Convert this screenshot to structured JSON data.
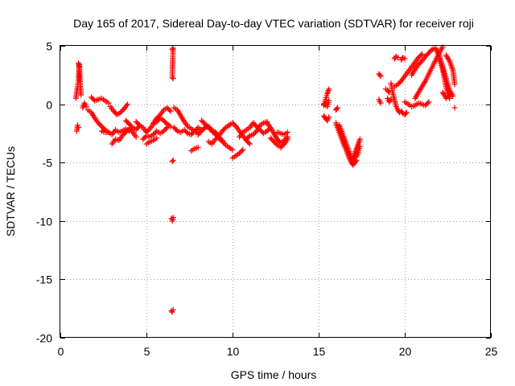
{
  "chart_data": {
    "type": "scatter",
    "title": "Day 165 of 2017, Sidereal Day-to-day VTEC variation (SDTVAR) for receiver roji",
    "xlabel": "GPS time / hours",
    "ylabel": "SDTVAR / TECUs",
    "xlim": [
      0,
      25
    ],
    "ylim": [
      -20,
      5
    ],
    "xticks": [
      0,
      5,
      10,
      15,
      20,
      25
    ],
    "yticks": [
      5,
      0,
      -5,
      -10,
      -15,
      -20
    ],
    "xtick_labels": [
      "0",
      "5",
      "10",
      "15",
      "20",
      "25"
    ],
    "ytick_labels": [
      "5",
      "0",
      "-5",
      "-10",
      "-15",
      "-20"
    ],
    "grid": true,
    "marker": "+",
    "color": "#ff0000",
    "series": [
      {
        "name": "SDTVAR",
        "segments": [
          {
            "x": [
              0.9,
              1.0,
              1.05,
              1.1,
              1.15,
              1.2
            ],
            "y": [
              0.5,
              1.5,
              2.0,
              3.4,
              1.8,
              0.8
            ]
          },
          {
            "x": [
              1.05,
              1.1
            ],
            "y": [
              3.5,
              3.2
            ]
          },
          {
            "x": [
              0.95,
              1.0,
              1.05
            ],
            "y": [
              -2.3,
              -1.8,
              -2.0
            ]
          },
          {
            "x": [
              1.3,
              1.4,
              1.5
            ],
            "y": [
              -0.3,
              0.1,
              -0.2
            ]
          },
          {
            "x": [
              1.6,
              1.8,
              2.0,
              2.2,
              2.4,
              2.6,
              2.8
            ],
            "y": [
              -0.5,
              -0.7,
              -1.2,
              -1.6,
              -1.9,
              -2.2,
              -2.4
            ]
          },
          {
            "x": [
              1.8,
              2.0,
              2.2,
              2.4,
              2.6,
              2.8
            ],
            "y": [
              0.6,
              0.3,
              0.4,
              0.5,
              0.3,
              0.1
            ]
          },
          {
            "x": [
              2.4,
              2.6,
              2.8,
              3.0,
              3.2,
              3.4,
              3.6,
              3.8,
              4.0
            ],
            "y": [
              -2.3,
              -2.4,
              -2.4,
              -2.6,
              -2.2,
              -2.4,
              -2.3,
              -2.1,
              -2.3
            ]
          },
          {
            "x": [
              2.9,
              3.1,
              3.3,
              3.5,
              3.7,
              3.9
            ],
            "y": [
              -0.2,
              -0.6,
              -0.9,
              -0.7,
              -0.4,
              0.0
            ]
          },
          {
            "x": [
              3.0,
              3.2,
              3.4,
              3.6,
              3.8,
              4.0,
              4.2,
              4.4
            ],
            "y": [
              -3.4,
              -3.0,
              -3.1,
              -2.7,
              -2.4,
              -2.1,
              -2.4,
              -2.8
            ]
          },
          {
            "x": [
              3.8,
              4.0,
              4.2,
              4.4,
              4.6
            ],
            "y": [
              -1.4,
              -1.7,
              -2.0,
              -2.2,
              -1.8
            ]
          },
          {
            "x": [
              4.4,
              4.6,
              4.8,
              5.0,
              5.2,
              5.4,
              5.6,
              5.8,
              6.0,
              6.2,
              6.4
            ],
            "y": [
              -1.5,
              -1.8,
              -2.0,
              -2.4,
              -2.1,
              -1.7,
              -1.5,
              -1.2,
              -1.4,
              -1.7,
              -1.9
            ]
          },
          {
            "x": [
              4.8,
              5.0,
              5.2,
              5.4,
              5.6,
              5.8,
              6.0,
              6.2
            ],
            "y": [
              -3.0,
              -2.7,
              -2.8,
              -2.6,
              -2.3,
              -2.5,
              -2.3,
              -2.0
            ]
          },
          {
            "x": [
              5.4,
              5.6,
              5.8,
              6.0,
              6.2,
              6.4
            ],
            "y": [
              -1.6,
              -1.2,
              -0.9,
              -0.5,
              -0.3,
              -0.6
            ]
          },
          {
            "x": [
              5.0,
              5.2,
              5.4,
              5.6
            ],
            "y": [
              -3.4,
              -3.2,
              -3.1,
              -2.9
            ]
          },
          {
            "x": [
              6.5,
              6.55,
              6.5,
              6.55
            ],
            "y": [
              4.7,
              4.8,
              2.3,
              2.2
            ]
          },
          {
            "x": [
              6.5,
              6.55
            ],
            "y": [
              -4.9,
              -4.8
            ]
          },
          {
            "x": [
              6.45,
              6.5,
              6.55
            ],
            "y": [
              -9.8,
              -10.0,
              -9.7
            ]
          },
          {
            "x": [
              6.45,
              6.5,
              6.55
            ],
            "y": [
              -17.7,
              -17.8,
              -17.6
            ]
          },
          {
            "x": [
              6.6,
              6.8,
              7.0,
              7.2,
              7.4,
              7.6,
              7.8,
              8.0,
              8.2
            ],
            "y": [
              -0.3,
              -0.5,
              -1.0,
              -1.5,
              -1.9,
              -2.1,
              -2.3,
              -2.0,
              -2.2
            ]
          },
          {
            "x": [
              6.6,
              6.8,
              7.0,
              7.2,
              7.4,
              7.6,
              7.8,
              8.0
            ],
            "y": [
              -2.0,
              -2.3,
              -2.4,
              -2.2,
              -2.5,
              -2.6,
              -2.3,
              -2.5
            ]
          },
          {
            "x": [
              7.6,
              7.8,
              8.0
            ],
            "y": [
              -4.0,
              -3.8,
              -3.7
            ]
          },
          {
            "x": [
              8.0,
              8.2,
              8.4,
              8.6,
              8.8,
              9.0,
              9.2,
              9.4,
              9.6,
              9.8
            ],
            "y": [
              -2.6,
              -2.3,
              -2.0,
              -1.9,
              -2.2,
              -2.4,
              -2.7,
              -2.3,
              -2.0,
              -1.8
            ]
          },
          {
            "x": [
              8.2,
              8.4,
              8.6,
              8.8,
              9.0,
              9.2,
              9.4
            ],
            "y": [
              -1.4,
              -1.7,
              -2.0,
              -2.3,
              -2.6,
              -2.9,
              -3.2
            ]
          },
          {
            "x": [
              8.6,
              8.8,
              9.0,
              9.2,
              9.4,
              9.6,
              9.8,
              10.0
            ],
            "y": [
              -3.2,
              -3.4,
              -3.0,
              -2.8,
              -3.1,
              -3.5,
              -3.7,
              -3.9
            ]
          },
          {
            "x": [
              9.8,
              10.0,
              10.2,
              10.4,
              10.6,
              10.8,
              11.0
            ],
            "y": [
              -1.8,
              -1.6,
              -1.9,
              -2.3,
              -2.7,
              -3.1,
              -3.4
            ]
          },
          {
            "x": [
              10.0,
              10.2,
              10.4,
              10.6
            ],
            "y": [
              -4.6,
              -4.4,
              -4.2,
              -3.9
            ]
          },
          {
            "x": [
              10.4,
              10.6,
              10.8,
              11.0,
              11.2,
              11.4,
              11.6,
              11.8,
              12.0,
              12.2
            ],
            "y": [
              -2.8,
              -2.4,
              -2.2,
              -2.0,
              -1.6,
              -1.9,
              -2.2,
              -2.5,
              -2.3,
              -2.0
            ]
          },
          {
            "x": [
              10.8,
              11.0,
              11.2,
              11.4,
              11.6,
              11.8,
              12.0
            ],
            "y": [
              -3.0,
              -2.7,
              -2.6,
              -2.3,
              -1.8,
              -1.6,
              -1.5
            ]
          },
          {
            "x": [
              12.0,
              12.2,
              12.4,
              12.6,
              12.8,
              13.0,
              13.2
            ],
            "y": [
              -1.6,
              -2.0,
              -2.5,
              -3.0,
              -3.3,
              -3.1,
              -2.8
            ]
          },
          {
            "x": [
              12.2,
              12.4,
              12.6,
              12.8,
              13.0,
              13.2
            ],
            "y": [
              -2.9,
              -3.2,
              -3.5,
              -3.7,
              -3.4,
              -3.0
            ]
          },
          {
            "x": [
              12.6,
              12.8,
              13.0,
              13.2
            ],
            "y": [
              -2.4,
              -2.5,
              -2.6,
              -2.4
            ]
          },
          {
            "x": [
              15.3,
              15.4,
              15.5,
              15.6
            ],
            "y": [
              -0.1,
              0.4,
              0.9,
              1.3
            ]
          },
          {
            "x": [
              15.3,
              15.4,
              15.5,
              15.6
            ],
            "y": [
              -1.0,
              -1.2,
              -1.4,
              -1.1
            ]
          },
          {
            "x": [
              15.3,
              15.5,
              15.6
            ],
            "y": [
              0.0,
              -0.2,
              0.3
            ]
          },
          {
            "x": [
              16.0,
              16.1
            ],
            "y": [
              -0.5,
              -0.3
            ]
          },
          {
            "x": [
              16.0,
              16.1,
              16.2,
              16.3,
              16.4,
              16.5,
              16.6,
              16.7,
              16.8,
              16.9,
              17.0,
              17.1,
              17.2
            ],
            "y": [
              -1.6,
              -2.0,
              -2.4,
              -2.8,
              -3.2,
              -3.6,
              -3.9,
              -4.3,
              -4.7,
              -5.0,
              -5.2,
              -5.0,
              -4.8
            ]
          },
          {
            "x": [
              16.2,
              16.3,
              16.4,
              16.5,
              16.6,
              16.7,
              16.8,
              16.9,
              17.0,
              17.1
            ],
            "y": [
              -1.8,
              -2.2,
              -2.6,
              -3.0,
              -3.4,
              -3.8,
              -4.2,
              -4.6,
              -4.9,
              -4.5
            ]
          },
          {
            "x": [
              17.0,
              17.1,
              17.2,
              17.3,
              17.4
            ],
            "y": [
              -4.6,
              -4.2,
              -3.8,
              -3.4,
              -3.0
            ]
          },
          {
            "x": [
              17.2,
              17.3,
              17.4
            ],
            "y": [
              -4.5,
              -4.1,
              -3.6
            ]
          },
          {
            "x": [
              18.5,
              18.6
            ],
            "y": [
              2.6,
              2.4
            ]
          },
          {
            "x": [
              18.5,
              18.6
            ],
            "y": [
              0.4,
              0.1
            ]
          },
          {
            "x": [
              18.9,
              19.0,
              19.1
            ],
            "y": [
              1.3,
              1.2,
              1.0
            ]
          },
          {
            "x": [
              19.0,
              19.1,
              19.2
            ],
            "y": [
              0.5,
              0.2,
              0.4
            ]
          },
          {
            "x": [
              19.2,
              19.3,
              19.4,
              19.5,
              19.6,
              19.7,
              19.8,
              19.9,
              20.0,
              20.1
            ],
            "y": [
              1.8,
              1.0,
              0.4,
              -0.2,
              -0.5,
              -0.7,
              -0.6,
              -0.8,
              -0.9,
              -0.7
            ]
          },
          {
            "x": [
              19.4,
              19.6,
              19.8,
              20.0,
              20.2,
              20.4,
              20.6,
              20.8,
              21.0
            ],
            "y": [
              1.5,
              1.7,
              2.0,
              2.4,
              2.8,
              3.2,
              3.6,
              4.0,
              4.3
            ]
          },
          {
            "x": [
              19.4,
              19.5,
              19.6
            ],
            "y": [
              3.9,
              4.1,
              4.0
            ]
          },
          {
            "x": [
              19.8,
              19.9,
              20.0
            ],
            "y": [
              3.8,
              4.0,
              3.9
            ]
          },
          {
            "x": [
              20.0,
              20.2,
              20.4,
              20.6,
              20.8,
              21.0,
              21.2,
              21.4
            ],
            "y": [
              0.2,
              0.0,
              -0.2,
              -0.1,
              0.1,
              0.0,
              -0.1,
              0.2
            ]
          },
          {
            "x": [
              20.4,
              20.6,
              20.8,
              21.0,
              21.2,
              21.4,
              21.6,
              21.8
            ],
            "y": [
              2.5,
              3.0,
              3.4,
              3.7,
              4.1,
              4.4,
              4.7,
              4.8
            ]
          },
          {
            "x": [
              20.6,
              20.8,
              21.0,
              21.2,
              21.4,
              21.6,
              21.8,
              22.0,
              22.2
            ],
            "y": [
              0.5,
              1.0,
              1.5,
              2.0,
              2.6,
              3.2,
              3.8,
              4.4,
              4.9
            ]
          },
          {
            "x": [
              21.8,
              22.0,
              22.2,
              22.4,
              22.6,
              22.8
            ],
            "y": [
              4.7,
              4.2,
              3.2,
              2.2,
              1.2,
              0.7
            ]
          },
          {
            "x": [
              22.0,
              22.2,
              22.4,
              22.6
            ],
            "y": [
              3.9,
              3.0,
              1.5,
              0.5
            ]
          },
          {
            "x": [
              22.2,
              22.3,
              22.4,
              22.5,
              22.6
            ],
            "y": [
              1.0,
              0.8,
              0.5,
              0.6,
              0.7
            ]
          },
          {
            "x": [
              22.4,
              22.6,
              22.8,
              22.9
            ],
            "y": [
              4.2,
              3.7,
              2.9,
              1.7
            ]
          },
          {
            "x": [
              22.9
            ],
            "y": [
              -0.3
            ]
          }
        ]
      }
    ]
  }
}
